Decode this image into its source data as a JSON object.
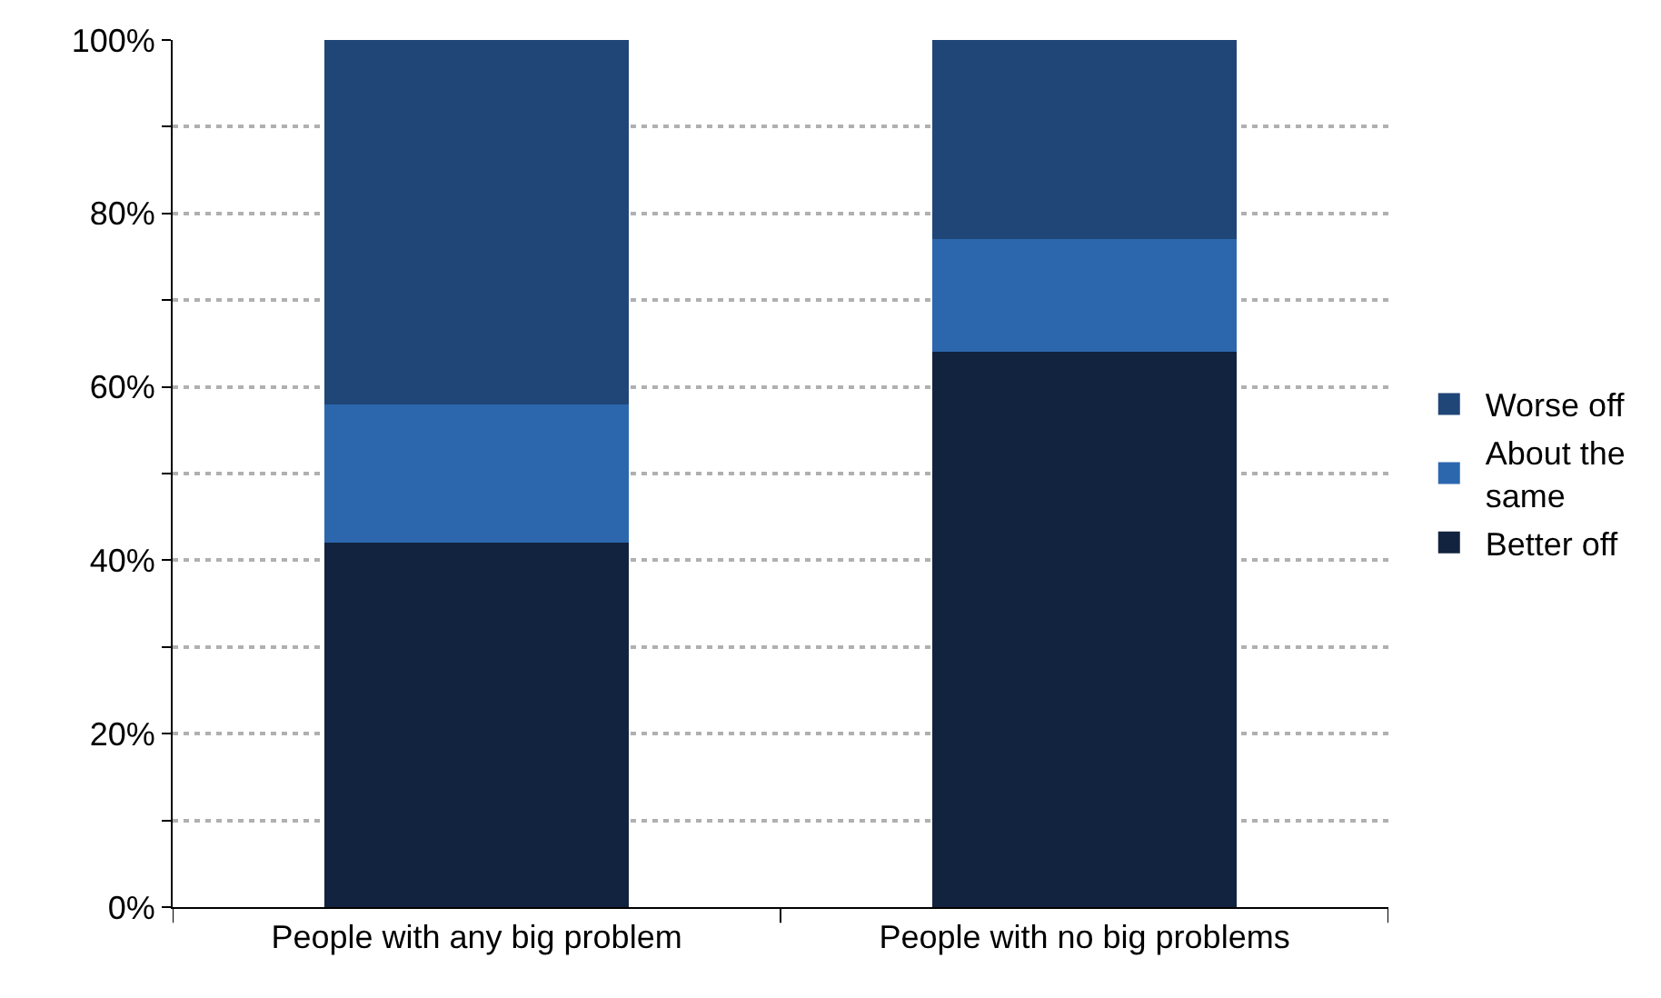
{
  "chart_data": {
    "type": "bar",
    "stacked": true,
    "categories": [
      "People with any big problem",
      "People with no big problems"
    ],
    "series": [
      {
        "name": "Better off",
        "color": "#12233f",
        "values": [
          42,
          64
        ]
      },
      {
        "name": "About the same",
        "color": "#2c67ae",
        "values": [
          16,
          13
        ]
      },
      {
        "name": "Worse off",
        "color": "#1f4677",
        "values": [
          42,
          23
        ]
      }
    ],
    "ylim": [
      0,
      100
    ],
    "yticks": [
      {
        "value": 0,
        "label": "0%"
      },
      {
        "value": 10,
        "label": null
      },
      {
        "value": 20,
        "label": "20%"
      },
      {
        "value": 30,
        "label": null
      },
      {
        "value": 40,
        "label": "40%"
      },
      {
        "value": 50,
        "label": null
      },
      {
        "value": 60,
        "label": "60%"
      },
      {
        "value": 70,
        "label": null
      },
      {
        "value": 80,
        "label": "80%"
      },
      {
        "value": 90,
        "label": null
      },
      {
        "value": 100,
        "label": "100%"
      }
    ],
    "grid": "y",
    "legend": "right"
  }
}
